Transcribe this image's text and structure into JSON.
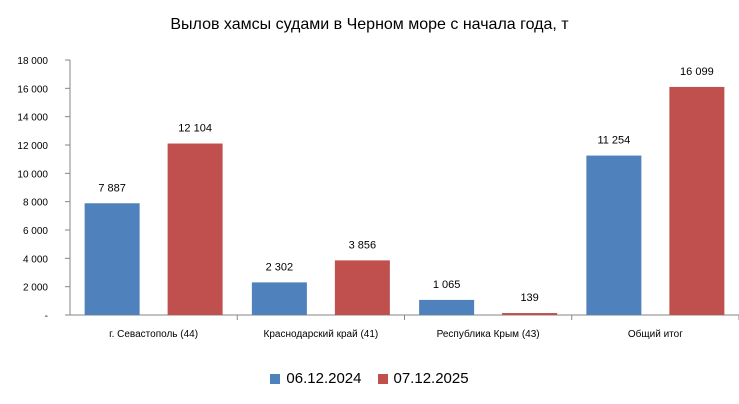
{
  "chart_data": {
    "type": "bar",
    "title": "Вылов хамсы судами в Черном море с начала  года, т",
    "xlabel": "",
    "ylabel": "",
    "categories": [
      "г. Севастополь (44)",
      "Краснодарский край (41)",
      "Республика Крым (43)",
      "Общий итог"
    ],
    "series": [
      {
        "name": "06.12.2024",
        "values": [
          7887,
          2302,
          1065,
          11254
        ],
        "labels": [
          "7 887",
          "2 302",
          "1 065",
          "11 254"
        ],
        "color": "#4f81bd"
      },
      {
        "name": "07.12.2025",
        "values": [
          12104,
          3856,
          139,
          16099
        ],
        "labels": [
          "12 104",
          "3 856",
          "139",
          "16 099"
        ],
        "color": "#c0504d"
      }
    ],
    "ylim": [
      0,
      18000
    ],
    "yticks": [
      0,
      2000,
      4000,
      6000,
      8000,
      10000,
      12000,
      14000,
      16000,
      18000
    ],
    "ytick_labels": [
      "-",
      "2 000",
      "4 000",
      "6 000",
      "8 000",
      "10 000",
      "12 000",
      "14 000",
      "16 000",
      "18 000"
    ],
    "grid": false,
    "legend_position": "bottom"
  }
}
